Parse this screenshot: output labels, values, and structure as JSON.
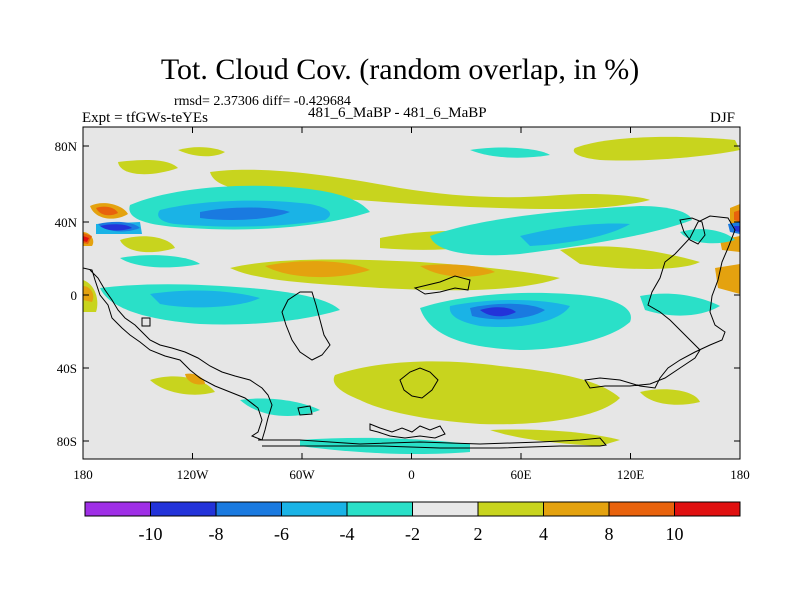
{
  "title": "Tot. Cloud Cov. (random overlap, in %)",
  "stats": "rmsd= 2.37306 diff= -0.429684",
  "experiment": "Expt = tfGWs-teYEs",
  "case_label": "481_6_MaBP - 481_6_MaBP",
  "season": "DJF",
  "colors": {
    "map_background": "#e6e6e6",
    "coastline": "#000000",
    "lt_-10": "#9f2fe6",
    "-10_-8": "#2333d9",
    "-8_-6": "#1a7ae0",
    "-6_-4": "#1ab3e6",
    "-4_-2": "#2ae0c8",
    "-2_2": "#e8e8e8",
    "2_4": "#c8d41e",
    "4_8": "#e4a20f",
    "8_10": "#e8620c",
    "gt_10": "#e01010"
  },
  "axes": {
    "x_ticks": [
      "180",
      "120W",
      "60W",
      "0",
      "60E",
      "120E",
      "180"
    ],
    "y_ticks": [
      "80N",
      "40N",
      "0",
      "40S",
      "80S"
    ]
  },
  "colorbar": {
    "labels": [
      "-10",
      "-8",
      "-6",
      "-4",
      "-2",
      "2",
      "4",
      "8",
      "10"
    ],
    "colors": [
      "#9f2fe6",
      "#2333d9",
      "#1a7ae0",
      "#1ab3e6",
      "#2ae0c8",
      "#e8e8e8",
      "#c8d41e",
      "#e4a20f",
      "#e8620c",
      "#e01010"
    ]
  }
}
